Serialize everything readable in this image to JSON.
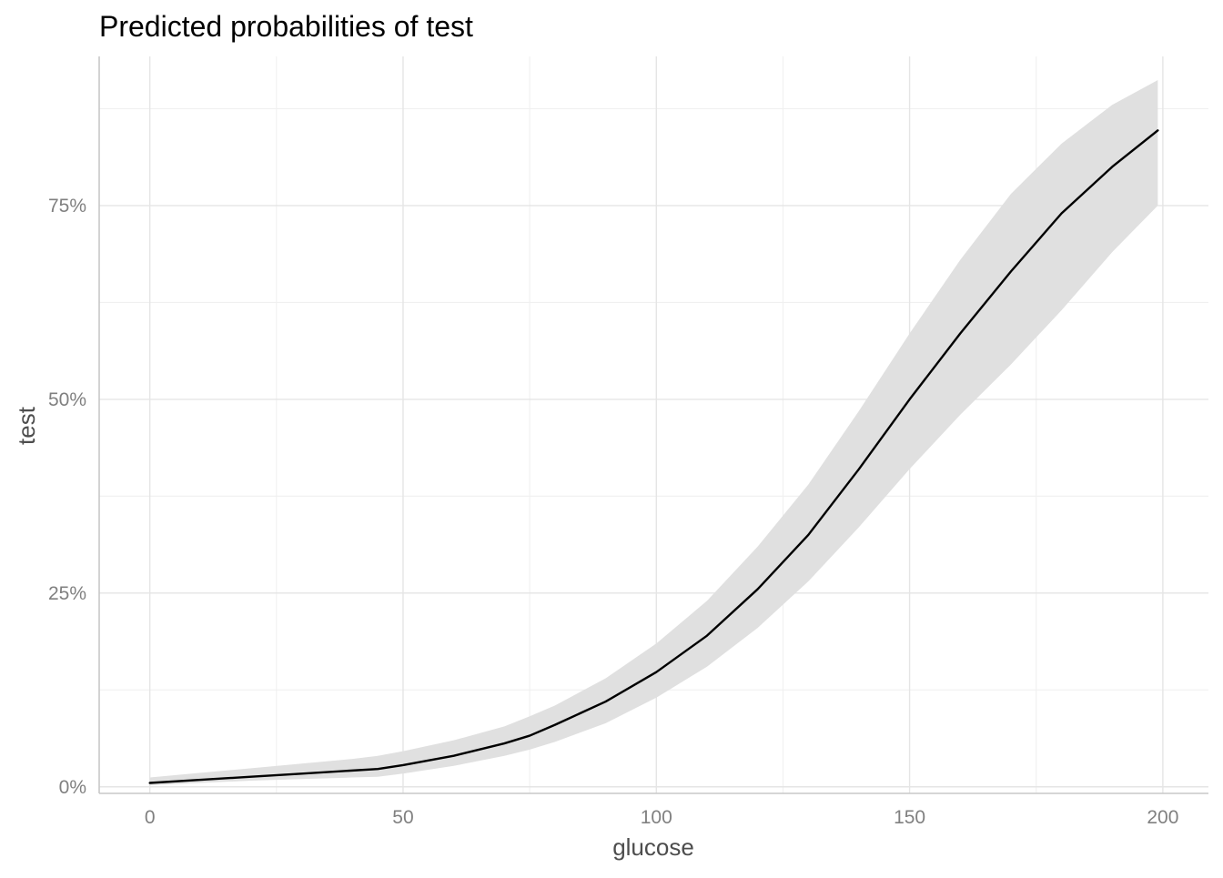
{
  "chart_data": {
    "type": "line",
    "title": "Predicted probabilities of test",
    "xlabel": "glucose",
    "ylabel": "test",
    "xlim": [
      -10,
      209
    ],
    "ylim": [
      -0.0085,
      0.9425
    ],
    "x_ticks": [
      0,
      50,
      100,
      150,
      200
    ],
    "x_tick_labels": [
      "0",
      "50",
      "100",
      "150",
      "200"
    ],
    "x_minor_ticks": [
      25,
      75,
      125,
      175
    ],
    "y_ticks": [
      0,
      0.25,
      0.5,
      0.75
    ],
    "y_tick_labels": [
      "0%",
      "25%",
      "50%",
      "75%"
    ],
    "y_minor_ticks": [
      0.125,
      0.375,
      0.625,
      0.875
    ],
    "grid": true,
    "legend": "none",
    "colors": {
      "line": "#000000",
      "ribbon": "#e0e0e0"
    },
    "series": [
      {
        "x": [
          0,
          10,
          20,
          30,
          40,
          45,
          50,
          60,
          70,
          75,
          80,
          90,
          100,
          110,
          120,
          130,
          140,
          150,
          160,
          170,
          180,
          190,
          199
        ],
        "y": [
          0.005,
          0.009,
          0.013,
          0.017,
          0.021,
          0.023,
          0.028,
          0.04,
          0.056,
          0.066,
          0.08,
          0.11,
          0.148,
          0.195,
          0.255,
          0.325,
          0.41,
          0.5,
          0.585,
          0.665,
          0.74,
          0.8,
          0.847
        ],
        "lower": [
          0.002,
          0.005,
          0.008,
          0.01,
          0.012,
          0.013,
          0.017,
          0.027,
          0.04,
          0.048,
          0.058,
          0.082,
          0.115,
          0.155,
          0.205,
          0.265,
          0.335,
          0.41,
          0.48,
          0.545,
          0.615,
          0.69,
          0.75
        ],
        "upper": [
          0.012,
          0.018,
          0.024,
          0.03,
          0.036,
          0.04,
          0.046,
          0.06,
          0.078,
          0.091,
          0.105,
          0.14,
          0.185,
          0.24,
          0.31,
          0.39,
          0.485,
          0.585,
          0.68,
          0.765,
          0.83,
          0.88,
          0.912
        ]
      }
    ]
  }
}
